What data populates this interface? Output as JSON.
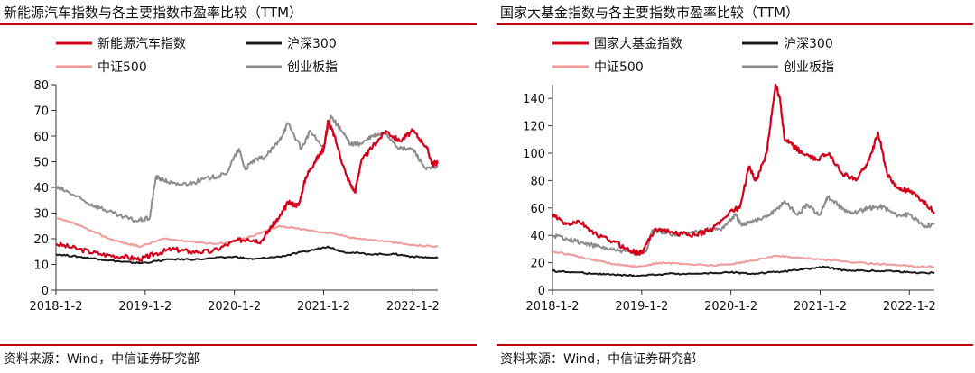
{
  "colors": {
    "rule": "#c0000f",
    "main_series": "#d4001a",
    "hs300": "#1a1a1a",
    "csi500": "#f29999",
    "chinext": "#8c8c8c"
  },
  "chart_data": [
    {
      "type": "line",
      "title": "新能源汽车指数与各主要指数市盈率比较（TTM）",
      "source": "资料来源：Wind，中信证券研究部",
      "xlabel": "",
      "ylabel": "",
      "x_ticks": [
        "2018-1-2",
        "2019-1-2",
        "2020-1-2",
        "2021-1-2",
        "2022-1-2"
      ],
      "x_range": [
        2018.0,
        2022.28
      ],
      "ylim": [
        0,
        80
      ],
      "y_ticks": [
        0,
        10,
        20,
        30,
        40,
        50,
        60,
        70,
        80
      ],
      "grid": false,
      "legend": "top",
      "series": [
        {
          "name": "新能源汽车指数",
          "key": "main_series",
          "x": [
            2018.0,
            2018.25,
            2018.5,
            2018.75,
            2018.95,
            2019.1,
            2019.3,
            2019.5,
            2019.75,
            2020.0,
            2020.15,
            2020.3,
            2020.42,
            2020.5,
            2020.6,
            2020.72,
            2020.8,
            2020.9,
            2021.0,
            2021.05,
            2021.12,
            2021.25,
            2021.35,
            2021.42,
            2021.55,
            2021.7,
            2021.85,
            2022.0,
            2022.15,
            2022.22,
            2022.28
          ],
          "y": [
            18,
            16,
            14,
            13,
            12,
            14,
            16,
            15,
            15,
            19,
            20,
            19,
            25,
            28,
            34,
            33,
            44,
            50,
            55,
            66,
            60,
            45,
            38,
            50,
            56,
            62,
            58,
            62,
            56,
            49,
            50
          ]
        },
        {
          "name": "沪深300",
          "key": "hs300",
          "x": [
            2018.0,
            2018.25,
            2018.5,
            2018.75,
            2018.95,
            2019.3,
            2019.6,
            2020.0,
            2020.2,
            2020.5,
            2020.8,
            2021.05,
            2021.2,
            2021.5,
            2021.8,
            2022.0,
            2022.28
          ],
          "y": [
            14,
            13,
            12,
            11,
            10.5,
            12,
            12,
            13,
            12,
            13,
            15,
            17,
            15,
            14,
            14,
            13,
            12.5
          ]
        },
        {
          "name": "中证500",
          "key": "csi500",
          "x": [
            2018.0,
            2018.2,
            2018.4,
            2018.6,
            2018.8,
            2018.95,
            2019.2,
            2019.5,
            2019.8,
            2020.0,
            2020.2,
            2020.5,
            2020.7,
            2020.9,
            2021.1,
            2021.4,
            2021.7,
            2022.0,
            2022.28
          ],
          "y": [
            28,
            26,
            23,
            20,
            18,
            17,
            20,
            19,
            18,
            19,
            21,
            25,
            24,
            23,
            22,
            20,
            19,
            17.5,
            17
          ]
        },
        {
          "name": "创业板指",
          "key": "chinext",
          "x": [
            2018.0,
            2018.15,
            2018.35,
            2018.5,
            2018.7,
            2018.9,
            2019.05,
            2019.12,
            2019.2,
            2019.35,
            2019.55,
            2019.75,
            2019.9,
            2020.05,
            2020.12,
            2020.2,
            2020.35,
            2020.5,
            2020.6,
            2020.75,
            2020.85,
            2021.0,
            2021.08,
            2021.2,
            2021.3,
            2021.42,
            2021.55,
            2021.7,
            2021.85,
            2022.0,
            2022.15,
            2022.28
          ],
          "y": [
            40,
            38,
            34,
            32,
            29,
            27,
            28,
            44,
            43,
            41,
            42,
            44,
            45,
            55,
            47,
            50,
            52,
            58,
            65,
            55,
            62,
            55,
            68,
            62,
            57,
            57,
            60,
            61,
            55,
            55,
            47,
            48
          ]
        }
      ]
    },
    {
      "type": "line",
      "title": "国家大基金指数与各主要指数市盈率比较（TTM）",
      "source": "资料来源：Wind，中信证券研究部",
      "xlabel": "",
      "ylabel": "",
      "x_ticks": [
        "2018-1-2",
        "2019-1-2",
        "2020-1-2",
        "2021-1-2",
        "2022-1-2"
      ],
      "x_range": [
        2018.0,
        2022.28
      ],
      "ylim": [
        0,
        150
      ],
      "y_ticks": [
        0,
        20,
        40,
        60,
        80,
        100,
        120,
        140
      ],
      "grid": false,
      "legend": "top",
      "series": [
        {
          "name": "国家大基金指数",
          "key": "main_series",
          "x": [
            2018.0,
            2018.15,
            2018.3,
            2018.5,
            2018.7,
            2018.9,
            2019.0,
            2019.15,
            2019.35,
            2019.6,
            2019.8,
            2020.0,
            2020.1,
            2020.2,
            2020.28,
            2020.4,
            2020.5,
            2020.55,
            2020.6,
            2020.7,
            2020.8,
            2020.95,
            2021.1,
            2021.25,
            2021.4,
            2021.55,
            2021.65,
            2021.75,
            2021.85,
            2022.0,
            2022.15,
            2022.28
          ],
          "y": [
            55,
            48,
            50,
            40,
            35,
            28,
            27,
            45,
            42,
            40,
            45,
            58,
            60,
            90,
            80,
            100,
            150,
            140,
            110,
            105,
            100,
            95,
            100,
            85,
            80,
            95,
            115,
            85,
            75,
            72,
            65,
            57
          ]
        },
        {
          "name": "沪深300",
          "key": "hs300",
          "x": [
            2018.0,
            2018.25,
            2018.5,
            2018.75,
            2018.95,
            2019.3,
            2019.6,
            2020.0,
            2020.2,
            2020.5,
            2020.8,
            2021.05,
            2021.2,
            2021.5,
            2021.8,
            2022.0,
            2022.28
          ],
          "y": [
            14,
            13,
            12,
            11,
            10.5,
            12,
            12,
            13,
            12,
            13,
            15,
            17,
            15,
            14,
            14,
            13,
            12.5
          ]
        },
        {
          "name": "中证500",
          "key": "csi500",
          "x": [
            2018.0,
            2018.2,
            2018.4,
            2018.6,
            2018.8,
            2018.95,
            2019.2,
            2019.5,
            2019.8,
            2020.0,
            2020.2,
            2020.5,
            2020.7,
            2020.9,
            2021.1,
            2021.4,
            2021.7,
            2022.0,
            2022.28
          ],
          "y": [
            28,
            26,
            23,
            20,
            18,
            17,
            20,
            19,
            18,
            19,
            21,
            25,
            24,
            23,
            22,
            20,
            19,
            17.5,
            17
          ]
        },
        {
          "name": "创业板指",
          "key": "chinext",
          "x": [
            2018.0,
            2018.15,
            2018.35,
            2018.5,
            2018.7,
            2018.9,
            2019.05,
            2019.12,
            2019.2,
            2019.35,
            2019.55,
            2019.75,
            2019.9,
            2020.05,
            2020.12,
            2020.2,
            2020.35,
            2020.5,
            2020.6,
            2020.75,
            2020.85,
            2021.0,
            2021.08,
            2021.2,
            2021.3,
            2021.42,
            2021.55,
            2021.7,
            2021.85,
            2022.0,
            2022.15,
            2022.28
          ],
          "y": [
            40,
            38,
            34,
            32,
            29,
            27,
            28,
            44,
            43,
            41,
            42,
            44,
            45,
            55,
            47,
            50,
            52,
            58,
            65,
            55,
            62,
            55,
            68,
            62,
            57,
            57,
            60,
            61,
            55,
            55,
            47,
            48
          ]
        }
      ]
    }
  ]
}
